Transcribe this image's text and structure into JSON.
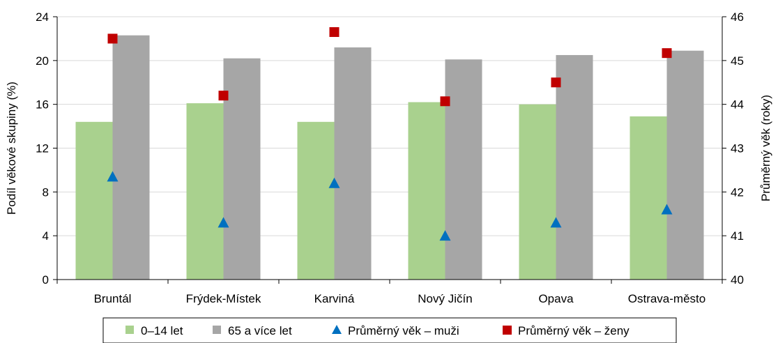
{
  "chart_data": {
    "type": "bar",
    "title": "",
    "categories": [
      "Bruntál",
      "Frýdek-Místek",
      "Karviná",
      "Nový Jičín",
      "Opava",
      "Ostrava-město"
    ],
    "ylabel": "Podíl věkové skupiny (%)",
    "y2label": "Průměrný věk (roky)",
    "ylim": [
      0,
      24
    ],
    "yticks": [
      0,
      4,
      8,
      12,
      16,
      20,
      24
    ],
    "y2lim": [
      40,
      46
    ],
    "y2ticks": [
      40,
      41,
      42,
      43,
      44,
      45,
      46
    ],
    "grid": true,
    "legend_position": "bottom",
    "series": [
      {
        "name": "0–14 let",
        "kind": "bar",
        "axis": "left",
        "color": "#a9d18e",
        "values": [
          14.4,
          16.1,
          14.4,
          16.2,
          16.0,
          14.9
        ]
      },
      {
        "name": "65 a více let",
        "kind": "bar",
        "axis": "left",
        "color": "#a6a6a6",
        "values": [
          22.3,
          20.2,
          21.2,
          20.1,
          20.5,
          20.9
        ]
      },
      {
        "name": "Průměrný věk – muži",
        "kind": "marker",
        "marker": "triangle",
        "axis": "right",
        "color": "#0070c0",
        "values": [
          42.35,
          41.3,
          42.2,
          41.0,
          41.3,
          41.6
        ]
      },
      {
        "name": "Průměrný věk – ženy",
        "kind": "marker",
        "marker": "square",
        "axis": "right",
        "color": "#c00000",
        "values": [
          45.5,
          44.2,
          45.65,
          44.07,
          44.5,
          45.17
        ]
      }
    ]
  }
}
